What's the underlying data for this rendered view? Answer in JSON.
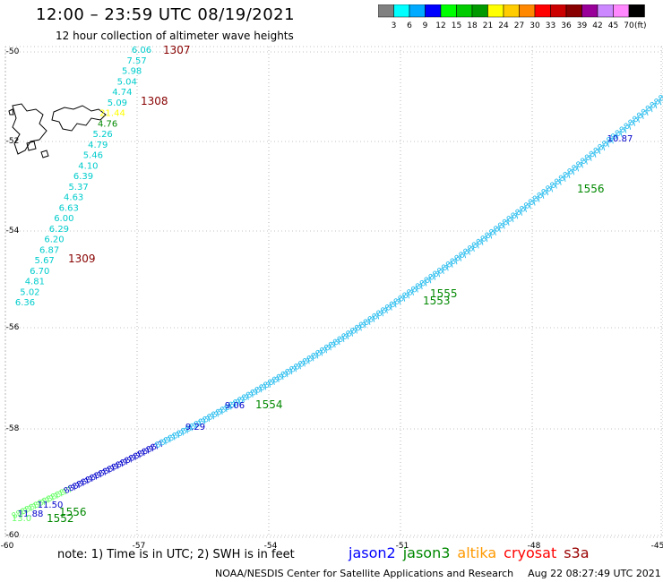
{
  "title": "12:00 – 23:59 UTC 08/19/2021",
  "subtitle": "12 hour collection of altimeter wave heights",
  "colorbar": {
    "colors": [
      "#808080",
      "#00ffff",
      "#00aaff",
      "#0000ff",
      "#00ff00",
      "#00cc00",
      "#009900",
      "#ffff00",
      "#ffcc00",
      "#ff8800",
      "#ff0000",
      "#cc0000",
      "#880000",
      "#990099",
      "#cc88ff",
      "#ff88ff",
      "#000000"
    ],
    "labels": [
      "3",
      "6",
      "9",
      "12",
      "15",
      "18",
      "21",
      "24",
      "27",
      "30",
      "33",
      "36",
      "39",
      "42",
      "45",
      "70",
      "(ft)"
    ]
  },
  "axes": {
    "lat_labels": [
      "-50",
      "-52",
      "-54",
      "-56",
      "-58",
      "-60"
    ],
    "lon_labels": [
      "-60",
      "-57",
      "-54",
      "-51",
      "-48",
      "-45"
    ]
  },
  "track_west": {
    "values": [
      "6.06",
      "7.57",
      "5.98",
      "5.04",
      "4.74",
      "5.09",
      "21.44",
      "4.76",
      "5.26",
      "4.79",
      "5.46",
      "4.10",
      "6.39",
      "5.37",
      "4.63",
      "6.63",
      "6.00",
      "6.29",
      "6.20",
      "6.87",
      "5.67",
      "6.70",
      "4.81",
      "5.02",
      "6.36"
    ],
    "passes": [
      "1307",
      "1308",
      "1309"
    ]
  },
  "track_east": {
    "labeled_values": [
      "10.87",
      "9.06",
      "9.29",
      "11.50",
      "11.88",
      "13.0"
    ],
    "passes": [
      "1556",
      "1555",
      "1554",
      "1553",
      "1552",
      "1556"
    ]
  },
  "note": "note:  1) Time is in UTC;  2) SWH is in feet",
  "legend": [
    {
      "name": "jason2",
      "color": "#0000ff"
    },
    {
      "name": "jason3",
      "color": "#008800"
    },
    {
      "name": "altika",
      "color": "#ff9900"
    },
    {
      "name": "cryosat",
      "color": "#ff0000"
    },
    {
      "name": "s3a",
      "color": "#990000"
    }
  ],
  "credit": "NOAA/NESDIS Center for Satellite Applications and Research",
  "timestamp": "Aug 22 08:27:49 UTC 2021"
}
